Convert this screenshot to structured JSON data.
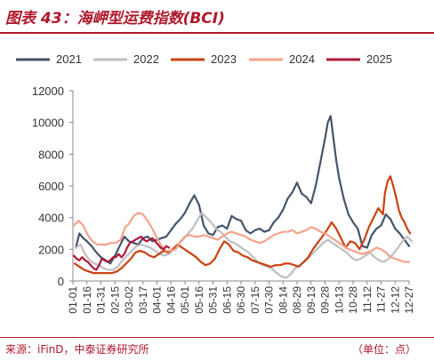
{
  "header": {
    "title": "图表 43：海岬型运费指数(BCI)"
  },
  "footer": {
    "source": "来源：iFinD，中泰证券研究所",
    "unit": "（单位：点）"
  },
  "colors": {
    "2021": "#44546a",
    "2022": "#bfbfbf",
    "2023": "#c9420e",
    "2024": "#f4a38c",
    "2025": "#b0173a",
    "accent": "#b0182c",
    "axis": "#888888"
  },
  "chart_data": {
    "type": "line",
    "title": "海岬型运费指数(BCI)",
    "unit": "点",
    "xlabel": "",
    "ylabel": "",
    "ylim": [
      0,
      12000
    ],
    "yticks": [
      0,
      2000,
      4000,
      6000,
      8000,
      10000,
      12000
    ],
    "x_ticks": [
      "01-01",
      "01-16",
      "01-31",
      "02-15",
      "03-02",
      "03-17",
      "04-01",
      "04-16",
      "05-01",
      "05-16",
      "05-31",
      "06-15",
      "06-30",
      "07-15",
      "07-30",
      "08-14",
      "08-29",
      "09-13",
      "09-28",
      "10-13",
      "10-28",
      "11-12",
      "11-27",
      "12-12",
      "12-27"
    ],
    "legend": {
      "position": "top"
    },
    "grid": false,
    "series": [
      {
        "name": "2021",
        "x": [
          "01-04",
          "01-08",
          "01-12",
          "01-16",
          "01-21",
          "01-26",
          "01-31",
          "02-05",
          "02-10",
          "02-15",
          "02-20",
          "02-25",
          "03-02",
          "03-07",
          "03-12",
          "03-17",
          "03-22",
          "03-27",
          "04-01",
          "04-06",
          "04-11",
          "04-16",
          "04-21",
          "04-26",
          "05-01",
          "05-06",
          "05-11",
          "05-16",
          "05-21",
          "05-26",
          "05-31",
          "06-05",
          "06-10",
          "06-15",
          "06-20",
          "06-25",
          "06-30",
          "07-05",
          "07-10",
          "07-15",
          "07-20",
          "07-25",
          "07-30",
          "08-04",
          "08-09",
          "08-14",
          "08-19",
          "08-24",
          "08-29",
          "09-03",
          "09-08",
          "09-13",
          "09-18",
          "09-23",
          "09-28",
          "10-01",
          "10-04",
          "10-07",
          "10-10",
          "10-13",
          "10-18",
          "10-23",
          "10-28",
          "11-02",
          "11-07",
          "11-12",
          "11-17",
          "11-22",
          "11-27",
          "12-02",
          "12-07",
          "12-12",
          "12-17",
          "12-22",
          "12-27"
        ],
        "values": [
          2100,
          3000,
          2700,
          2500,
          2200,
          1800,
          1500,
          1300,
          1100,
          1600,
          2200,
          2800,
          2500,
          2400,
          2300,
          2700,
          2800,
          2500,
          2600,
          2700,
          2800,
          3200,
          3600,
          3900,
          4300,
          4900,
          5400,
          4800,
          3500,
          3000,
          2900,
          3400,
          3500,
          3300,
          4100,
          3900,
          3800,
          3200,
          3000,
          3200,
          3300,
          3100,
          3200,
          3700,
          4000,
          4500,
          5200,
          5600,
          6200,
          5500,
          5300,
          4900,
          6000,
          7500,
          9000,
          10000,
          10400,
          9000,
          7600,
          6500,
          5200,
          4200,
          3700,
          3300,
          2200,
          2100,
          2900,
          3300,
          3500,
          4200,
          3900,
          3300,
          3000,
          2600,
          2200
        ]
      },
      {
        "name": "2022",
        "x": [
          "01-04",
          "01-09",
          "01-14",
          "01-19",
          "01-24",
          "01-29",
          "02-03",
          "02-08",
          "02-13",
          "02-18",
          "02-23",
          "02-28",
          "03-05",
          "03-10",
          "03-15",
          "03-20",
          "03-25",
          "03-30",
          "04-04",
          "04-09",
          "04-14",
          "04-19",
          "04-24",
          "04-29",
          "05-04",
          "05-09",
          "05-14",
          "05-19",
          "05-24",
          "05-29",
          "06-03",
          "06-08",
          "06-13",
          "06-18",
          "06-23",
          "06-28",
          "07-03",
          "07-08",
          "07-13",
          "07-18",
          "07-23",
          "07-28",
          "08-02",
          "08-07",
          "08-12",
          "08-17",
          "08-22",
          "08-27",
          "09-01",
          "09-06",
          "09-11",
          "09-16",
          "09-21",
          "09-26",
          "10-01",
          "10-06",
          "10-11",
          "10-16",
          "10-21",
          "10-26",
          "10-31",
          "11-05",
          "11-10",
          "11-15",
          "11-20",
          "11-25",
          "11-30",
          "12-05",
          "12-10",
          "12-15",
          "12-20",
          "12-25",
          "12-30"
        ],
        "values": [
          2100,
          2300,
          1700,
          1300,
          1100,
          1000,
          800,
          700,
          700,
          900,
          1300,
          1600,
          1900,
          2200,
          2300,
          2200,
          2100,
          1900,
          1700,
          1600,
          1700,
          2000,
          2300,
          2600,
          3000,
          3300,
          3800,
          4300,
          4000,
          3700,
          3300,
          3100,
          2800,
          2500,
          2400,
          2200,
          2000,
          1800,
          1500,
          1200,
          1000,
          900,
          800,
          500,
          300,
          200,
          400,
          800,
          1000,
          1200,
          1500,
          1800,
          2100,
          2400,
          2600,
          2400,
          2200,
          2000,
          1800,
          1500,
          1300,
          1400,
          1600,
          1800,
          1500,
          1300,
          1200,
          1400,
          1700,
          2100,
          2500,
          2800,
          2500
        ]
      },
      {
        "name": "2023",
        "x": [
          "01-03",
          "01-08",
          "01-13",
          "01-18",
          "01-23",
          "01-28",
          "02-02",
          "02-07",
          "02-12",
          "02-17",
          "02-22",
          "02-27",
          "03-04",
          "03-09",
          "03-14",
          "03-19",
          "03-24",
          "03-29",
          "04-03",
          "04-08",
          "04-13",
          "04-18",
          "04-23",
          "04-28",
          "05-03",
          "05-08",
          "05-13",
          "05-18",
          "05-23",
          "05-28",
          "06-02",
          "06-07",
          "06-12",
          "06-17",
          "06-22",
          "06-27",
          "07-02",
          "07-07",
          "07-12",
          "07-17",
          "07-22",
          "07-27",
          "08-01",
          "08-06",
          "08-11",
          "08-16",
          "08-21",
          "08-26",
          "08-31",
          "09-05",
          "09-10",
          "09-15",
          "09-20",
          "09-25",
          "09-30",
          "10-05",
          "10-10",
          "10-15",
          "10-20",
          "10-25",
          "10-30",
          "11-04",
          "11-09",
          "11-14",
          "11-19",
          "11-24",
          "11-29",
          "12-01",
          "12-04",
          "12-07",
          "12-10",
          "12-13",
          "12-16",
          "12-19",
          "12-22",
          "12-25",
          "12-28"
        ],
        "values": [
          1100,
          900,
          700,
          600,
          500,
          500,
          500,
          500,
          500,
          600,
          800,
          1100,
          1400,
          1800,
          1900,
          1800,
          1600,
          1500,
          1700,
          1900,
          1800,
          2000,
          2300,
          2100,
          1900,
          1700,
          1500,
          1200,
          1000,
          1100,
          1400,
          2000,
          2500,
          2300,
          1900,
          1800,
          1600,
          1500,
          1300,
          1200,
          1100,
          1000,
          900,
          1000,
          1000,
          1100,
          1100,
          1000,
          900,
          1200,
          1500,
          2000,
          2400,
          2800,
          3200,
          3700,
          3300,
          2700,
          2100,
          2500,
          2400,
          2000,
          2600,
          3400,
          4000,
          4600,
          4200,
          5500,
          6300,
          6600,
          6000,
          5300,
          4500,
          4000,
          3700,
          3300,
          3000
        ]
      },
      {
        "name": "2024",
        "x": [
          "01-02",
          "01-07",
          "01-12",
          "01-17",
          "01-22",
          "01-27",
          "02-01",
          "02-06",
          "02-11",
          "02-16",
          "02-21",
          "02-26",
          "03-02",
          "03-07",
          "03-12",
          "03-17",
          "03-22",
          "03-27",
          "04-01",
          "04-06",
          "04-11",
          "04-16",
          "04-21",
          "04-26",
          "05-01",
          "05-06",
          "05-11",
          "05-16",
          "05-21",
          "05-26",
          "05-31",
          "06-05",
          "06-10",
          "06-15",
          "06-20",
          "06-25",
          "06-30",
          "07-05",
          "07-10",
          "07-15",
          "07-20",
          "07-25",
          "07-30",
          "08-04",
          "08-09",
          "08-14",
          "08-19",
          "08-24",
          "08-29",
          "09-03",
          "09-08",
          "09-13",
          "09-18",
          "09-23",
          "09-28",
          "10-03",
          "10-08",
          "10-13",
          "10-18",
          "10-23",
          "10-28",
          "11-02",
          "11-07",
          "11-12",
          "11-17",
          "11-22",
          "11-27",
          "12-02",
          "12-07",
          "12-12",
          "12-17",
          "12-22",
          "12-27"
        ],
        "values": [
          3500,
          3800,
          3500,
          2900,
          2500,
          2300,
          2300,
          2300,
          2400,
          2400,
          2600,
          3400,
          3600,
          4100,
          4300,
          4200,
          3800,
          3300,
          2700,
          2200,
          1900,
          1900,
          2000,
          2500,
          2800,
          2900,
          2800,
          2800,
          2900,
          2800,
          2700,
          2600,
          2800,
          3000,
          3100,
          3000,
          2900,
          2800,
          2600,
          2500,
          2400,
          2500,
          2700,
          2900,
          3000,
          3100,
          3100,
          3200,
          3000,
          3100,
          3200,
          3400,
          3300,
          3100,
          3000,
          2800,
          2600,
          2400,
          2200,
          2000,
          1900,
          1800,
          1700,
          1800,
          1900,
          2100,
          2000,
          1800,
          1500,
          1400,
          1300,
          1200,
          1200
        ]
      },
      {
        "name": "2025",
        "x": [
          "01-02",
          "01-05",
          "01-08",
          "01-11",
          "01-14",
          "01-17",
          "01-20",
          "01-23",
          "01-26",
          "01-29",
          "02-01",
          "02-04",
          "02-07",
          "02-10",
          "02-13",
          "02-16",
          "02-19",
          "02-22",
          "02-25",
          "02-28",
          "03-03",
          "03-06",
          "03-09",
          "03-12",
          "03-15",
          "03-18",
          "03-21",
          "03-24",
          "03-27",
          "03-30",
          "04-02",
          "04-05",
          "04-08",
          "04-11",
          "04-14"
        ],
        "values": [
          1600,
          1400,
          1300,
          1500,
          1300,
          1200,
          1000,
          800,
          700,
          1000,
          1400,
          1300,
          1200,
          1300,
          1500,
          1500,
          1700,
          1500,
          1700,
          2100,
          2400,
          2500,
          2600,
          2700,
          2800,
          2600,
          2500,
          2600,
          2700,
          2500,
          2300,
          2100,
          2000,
          2200,
          2100
        ]
      }
    ]
  }
}
